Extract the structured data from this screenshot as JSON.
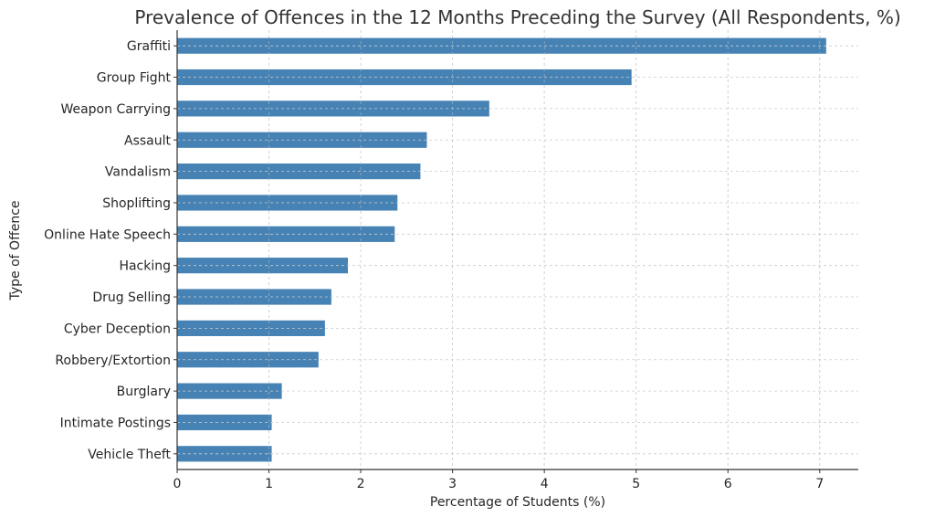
{
  "chart_data": {
    "type": "bar",
    "orientation": "horizontal",
    "title": "Prevalence of Offences in the 12 Months Preceding the Survey (All Respondents, %)",
    "xlabel": "Percentage of Students (%)",
    "ylabel": "Type of Offence",
    "categories": [
      "Graffiti",
      "Group Fight",
      "Weapon Carrying",
      "Assault",
      "Vandalism",
      "Shoplifting",
      "Online Hate Speech",
      "Hacking",
      "Drug Selling",
      "Cyber Deception",
      "Robbery/Extortion",
      "Burglary",
      "Intimate Postings",
      "Vehicle Theft"
    ],
    "values": [
      7.07,
      4.95,
      3.4,
      2.72,
      2.65,
      2.4,
      2.37,
      1.86,
      1.68,
      1.61,
      1.54,
      1.14,
      1.03,
      1.03
    ],
    "xlim": [
      0,
      7.42
    ],
    "xticks": [
      0,
      1,
      2,
      3,
      4,
      5,
      6,
      7
    ],
    "grid": true,
    "legend": null,
    "color": "#4682B4"
  }
}
